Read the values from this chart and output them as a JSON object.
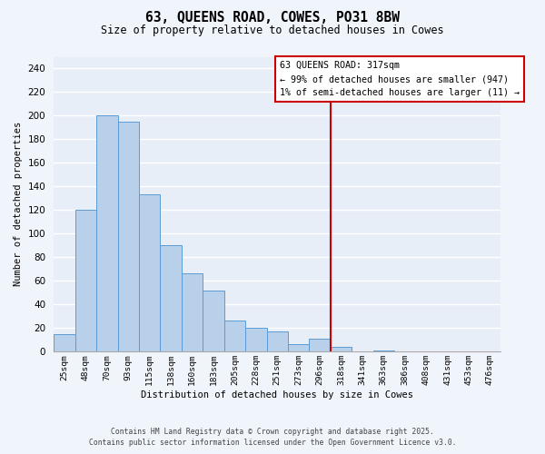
{
  "title": "63, QUEENS ROAD, COWES, PO31 8BW",
  "subtitle": "Size of property relative to detached houses in Cowes",
  "xlabel": "Distribution of detached houses by size in Cowes",
  "ylabel": "Number of detached properties",
  "bar_labels": [
    "25sqm",
    "48sqm",
    "70sqm",
    "93sqm",
    "115sqm",
    "138sqm",
    "160sqm",
    "183sqm",
    "205sqm",
    "228sqm",
    "251sqm",
    "273sqm",
    "296sqm",
    "318sqm",
    "341sqm",
    "363sqm",
    "386sqm",
    "408sqm",
    "431sqm",
    "453sqm",
    "476sqm"
  ],
  "bar_values": [
    15,
    120,
    200,
    195,
    133,
    90,
    66,
    52,
    26,
    20,
    17,
    6,
    11,
    4,
    0,
    1,
    0,
    0,
    0,
    0,
    0
  ],
  "bar_color": "#b8d0ea",
  "bar_edge_color": "#5b9bd5",
  "vline_color": "#cc0000",
  "annotation_title": "63 QUEENS ROAD: 317sqm",
  "annotation_line1": "← 99% of detached houses are smaller (947)",
  "annotation_line2": "1% of semi-detached houses are larger (11) →",
  "annotation_box_color": "#ffffff",
  "annotation_box_edge": "#cc0000",
  "ylim": [
    0,
    250
  ],
  "yticks": [
    0,
    20,
    40,
    60,
    80,
    100,
    120,
    140,
    160,
    180,
    200,
    220,
    240
  ],
  "footer1": "Contains HM Land Registry data © Crown copyright and database right 2025.",
  "footer2": "Contains public sector information licensed under the Open Government Licence v3.0.",
  "background_color": "#f0f4fb",
  "plot_bg_color": "#e8eef8"
}
